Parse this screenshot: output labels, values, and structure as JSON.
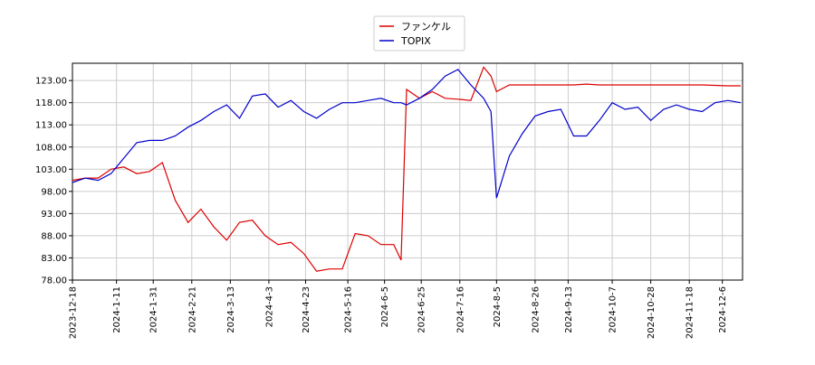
{
  "chart_data": {
    "type": "line",
    "x": [
      "2023-12-18",
      "2023-12-25",
      "2024-1-1",
      "2024-1-8",
      "2024-1-15",
      "2024-1-22",
      "2024-1-29",
      "2024-2-5",
      "2024-2-12",
      "2024-2-19",
      "2024-2-26",
      "2024-3-4",
      "2024-3-11",
      "2024-3-18",
      "2024-3-25",
      "2024-4-1",
      "2024-4-8",
      "2024-4-15",
      "2024-4-22",
      "2024-4-29",
      "2024-5-6",
      "2024-5-13",
      "2024-5-20",
      "2024-5-27",
      "2024-6-3",
      "2024-6-10",
      "2024-6-14",
      "2024-6-17",
      "2024-6-24",
      "2024-7-1",
      "2024-7-8",
      "2024-7-15",
      "2024-7-22",
      "2024-7-29",
      "2024-8-2",
      "2024-8-5",
      "2024-8-12",
      "2024-8-19",
      "2024-8-26",
      "2024-9-2",
      "2024-9-9",
      "2024-9-16",
      "2024-9-23",
      "2024-9-30",
      "2024-10-7",
      "2024-10-14",
      "2024-10-21",
      "2024-10-28",
      "2024-11-4",
      "2024-11-11",
      "2024-11-18",
      "2024-11-25",
      "2024-12-2",
      "2024-12-9",
      "2024-12-16"
    ],
    "series": [
      {
        "name": "ファンケル",
        "color": "#dd0000",
        "values": [
          100.5,
          101,
          101,
          103,
          103.5,
          102,
          102.5,
          104.5,
          96,
          91,
          94,
          90,
          87,
          91,
          91.5,
          88,
          86,
          86.5,
          84,
          80,
          80.5,
          80.5,
          88.5,
          88,
          86,
          86,
          82.5,
          121,
          119,
          120.5,
          119,
          118.8,
          118.5,
          126,
          124,
          120.5,
          122,
          122,
          122,
          122,
          122,
          122,
          122.2,
          122,
          122,
          122,
          122,
          122,
          122,
          122,
          122,
          122,
          121.9,
          121.8,
          121.8
        ]
      },
      {
        "name": "TOPIX",
        "color": "#0000cc",
        "values": [
          100,
          101,
          100.5,
          102,
          105.5,
          109,
          109.5,
          109.5,
          110.5,
          112.5,
          114,
          116,
          117.5,
          114.5,
          119.5,
          120,
          117,
          118.5,
          116,
          114.5,
          116.5,
          118,
          118,
          118.5,
          119,
          118,
          118,
          117.5,
          119,
          121,
          124,
          125.5,
          122,
          119,
          116,
          96.5,
          106,
          111,
          115,
          116,
          116.5,
          110.5,
          110.5,
          114,
          118,
          116.5,
          117,
          114,
          116.5,
          117.5,
          116.5,
          116,
          118,
          118.5,
          118
        ]
      }
    ],
    "xlim": [
      "2023-12-18",
      "2024-12-17"
    ],
    "xticks": [
      "2023-12-18",
      "2024-1-11",
      "2024-1-31",
      "2024-2-21",
      "2024-3-13",
      "2024-4-3",
      "2024-4-23",
      "2024-5-16",
      "2024-6-5",
      "2024-6-25",
      "2024-7-16",
      "2024-8-5",
      "2024-8-26",
      "2024-9-13",
      "2024-10-7",
      "2024-10-28",
      "2024-11-18",
      "2024-12-6"
    ],
    "ylim": [
      78,
      126.9
    ],
    "yticks": [
      {
        "value": 78,
        "label": "78.00"
      },
      {
        "value": 83,
        "label": "83.00"
      },
      {
        "value": 88,
        "label": "88.00"
      },
      {
        "value": 93,
        "label": "93.00"
      },
      {
        "value": 98,
        "label": "98.00"
      },
      {
        "value": 103,
        "label": "103.00"
      },
      {
        "value": 108,
        "label": "108.00"
      },
      {
        "value": 113,
        "label": "113.00"
      },
      {
        "value": 118,
        "label": "118.00"
      },
      {
        "value": 123,
        "label": "123.00"
      }
    ],
    "grid": true,
    "legend": "top"
  }
}
